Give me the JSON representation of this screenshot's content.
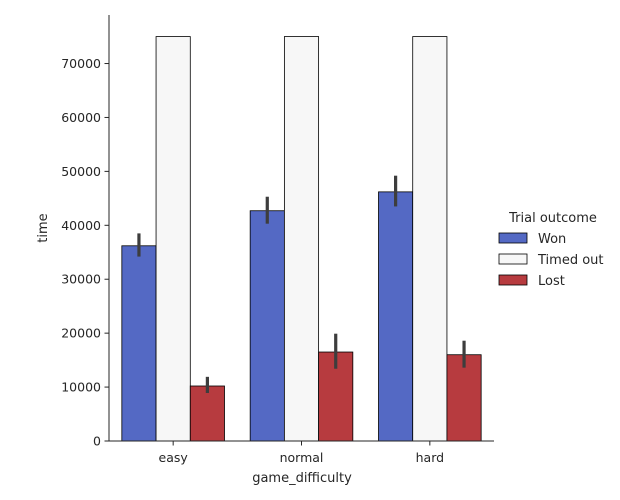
{
  "chart_data": {
    "type": "bar",
    "xlabel": "game_difficulty",
    "ylabel": "time",
    "categories": [
      "easy",
      "normal",
      "hard"
    ],
    "ylim": [
      0,
      79000
    ],
    "yticks": [
      0,
      10000,
      20000,
      30000,
      40000,
      50000,
      60000,
      70000
    ],
    "grid": false,
    "legend": {
      "title": "Trial outcome",
      "placement": "right"
    },
    "series": [
      {
        "name": "Won",
        "color": "#5469c4",
        "values": [
          36200,
          42700,
          46200
        ],
        "error_low": [
          34200,
          40300,
          43500
        ],
        "error_high": [
          38500,
          45300,
          49200
        ]
      },
      {
        "name": "Timed out",
        "color": "#f7f7f7",
        "values": [
          75000,
          75000,
          75000
        ],
        "error_low": [
          75000,
          75000,
          75000
        ],
        "error_high": [
          75000,
          75000,
          75000
        ]
      },
      {
        "name": "Lost",
        "color": "#b73b3f",
        "values": [
          10200,
          16500,
          16000
        ],
        "error_low": [
          8900,
          13400,
          13600
        ],
        "error_high": [
          11900,
          19900,
          18600
        ]
      }
    ]
  }
}
